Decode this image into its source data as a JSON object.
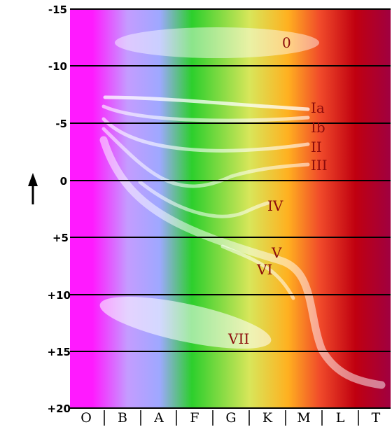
{
  "diagram": {
    "y_axis": {
      "tick_labels": [
        "-15",
        "-10",
        "-5",
        "0",
        "+5",
        "+10",
        "+15",
        "+20"
      ],
      "arrow": "up-arrow-icon"
    },
    "x_axis": {
      "spectral_classes": [
        "O",
        "B",
        "A",
        "F",
        "G",
        "K",
        "M",
        "L",
        "T"
      ]
    },
    "luminosity_classes": [
      "0",
      "Ia",
      "Ib",
      "II",
      "III",
      "IV",
      "V",
      "VI",
      "VII"
    ],
    "colors": {
      "O": "#ff1aff",
      "B": "#c49cff",
      "A": "#9ea8ff",
      "F": "#2ccf2c",
      "G": "#d8e65a",
      "K": "#ffb020",
      "M": "#f04a2a",
      "L": "#c00010",
      "T": "#a00040",
      "label": "#8b0b0b",
      "band": "#ffffff"
    }
  }
}
